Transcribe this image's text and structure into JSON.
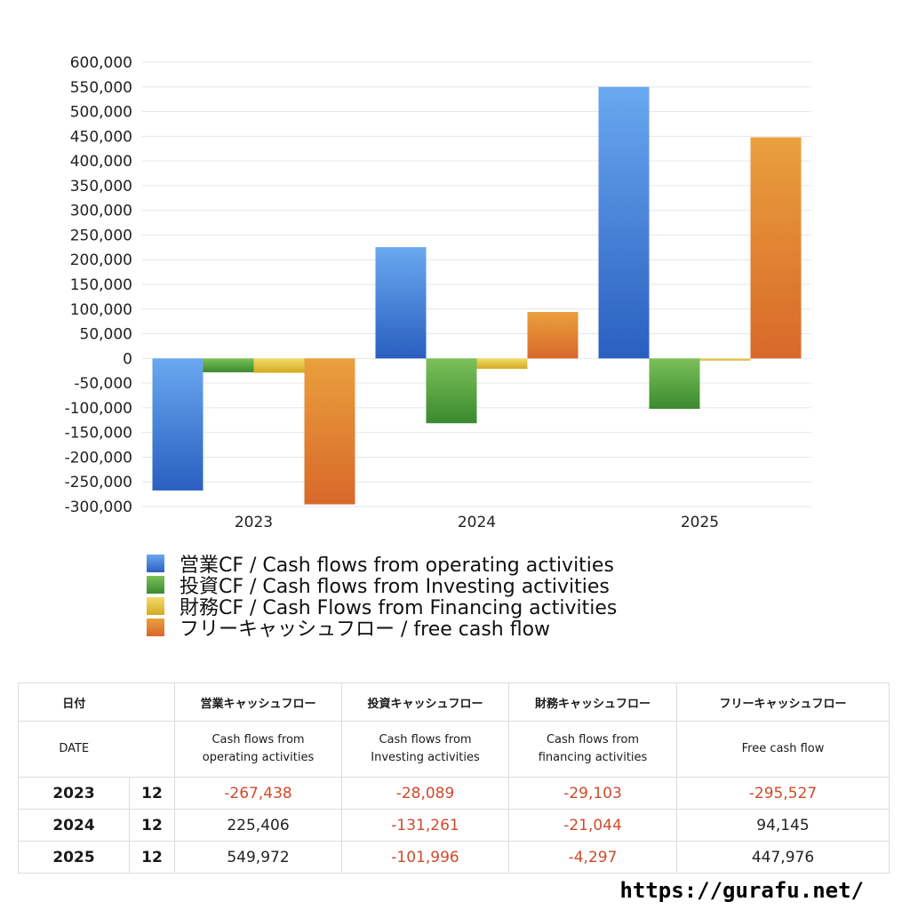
{
  "chart_data": {
    "type": "bar",
    "categories": [
      "2023",
      "2024",
      "2025"
    ],
    "series": [
      {
        "name": "営業CF / Cash flows from operating activities",
        "values": [
          -267438,
          225406,
          549972
        ],
        "color_top": "#6aa8f0",
        "color_bottom": "#2a5fc0"
      },
      {
        "name": "投資CF / Cash flows from Investing activities",
        "values": [
          -28089,
          -131261,
          -101996
        ],
        "color_top": "#7cc05a",
        "color_bottom": "#3a8a2e"
      },
      {
        "name": "財務CF / Cash Flows from Financing activities",
        "values": [
          -29103,
          -21044,
          -4297
        ],
        "color_top": "#f2dc6a",
        "color_bottom": "#d4aa22"
      },
      {
        "name": "フリーキャッシュフロー / free cash flow",
        "values": [
          -295527,
          94145,
          447976
        ],
        "color_top": "#eaa03e",
        "color_bottom": "#d8682a"
      }
    ],
    "ylim": [
      -300000,
      600000
    ],
    "yticks": [
      "600,000",
      "550,000",
      "500,000",
      "450,000",
      "400,000",
      "350,000",
      "300,000",
      "250,000",
      "200,000",
      "150,000",
      "100,000",
      "50,000",
      "0",
      "-50,000",
      "-100,000",
      "-150,000",
      "-200,000",
      "-250,000",
      "-300,000"
    ],
    "grid": true,
    "legend_position": "bottom"
  },
  "table": {
    "header_jp": {
      "date": "日付",
      "operating": "営業キャッシュフロー",
      "investing": "投資キャッシュフロー",
      "financing": "財務キャッシュフロー",
      "free": "フリーキャッシュフロー"
    },
    "header_en": {
      "date": "DATE",
      "operating_1": "Cash flows from",
      "operating_2": "operating activities",
      "investing_1": "Cash flows from",
      "investing_2": "Investing activities",
      "financing_1": "Cash flows from",
      "financing_2": "financing activities",
      "free": "Free cash flow"
    },
    "rows": [
      {
        "year": "2023",
        "month": "12",
        "operating": "-267,438",
        "investing": "-28,089",
        "financing": "-29,103",
        "free": "-295,527"
      },
      {
        "year": "2024",
        "month": "12",
        "operating": "225,406",
        "investing": "-131,261",
        "financing": "-21,044",
        "free": "94,145"
      },
      {
        "year": "2025",
        "month": "12",
        "operating": "549,972",
        "investing": "-101,996",
        "financing": "-4,297",
        "free": "447,976"
      }
    ]
  },
  "footer": {
    "url": "https://gurafu.net/"
  }
}
